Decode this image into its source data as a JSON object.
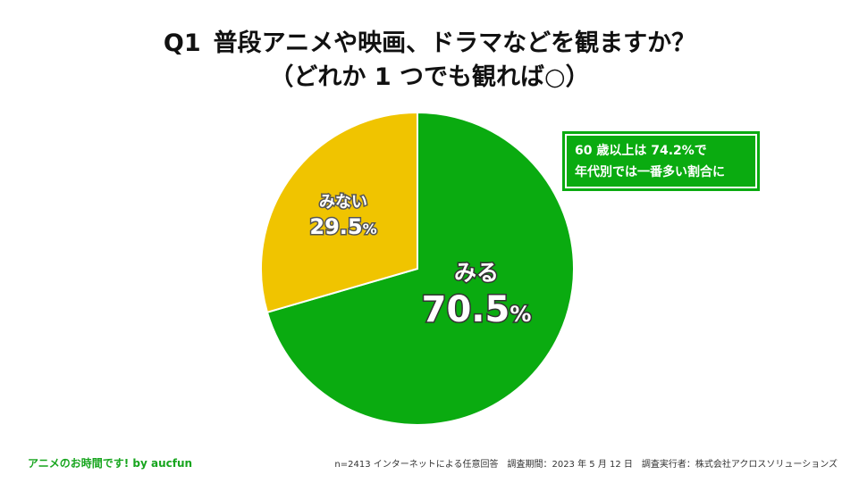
{
  "title": {
    "number": "Q1",
    "line1": "普段アニメや映画、ドラマなどを観ますか？",
    "line2": "（どれか 1 つでも観れば○）"
  },
  "chart_data": {
    "type": "pie",
    "slices": [
      {
        "label": "みる",
        "value": 70.5,
        "value_text": "70.5",
        "unit": "%",
        "color": "#0aab10"
      },
      {
        "label": "みない",
        "value": 29.5,
        "value_text": "29.5",
        "unit": "%",
        "color": "#f0c400"
      }
    ],
    "legend": "none"
  },
  "callout": {
    "line1": "60 歳以上は 74.2%で",
    "line2": "年代別では一番多い割合に"
  },
  "footer": {
    "brand": "アニメのお時間です! by aucfun",
    "meta": "n=2413 インターネットによる任意回答　調査期間：2023 年 5 月 12 日　調査実行者：株式会社アクロスソリューションズ"
  }
}
